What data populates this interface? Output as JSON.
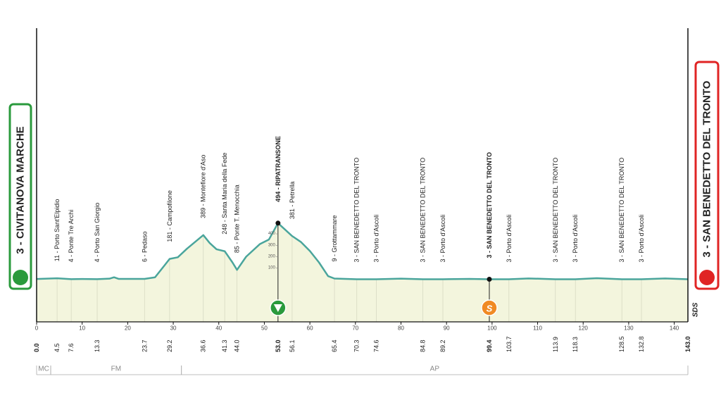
{
  "chart_data": {
    "type": "area",
    "start": "3 - CIVITANOVA MARCHE",
    "finish": "3 - SAN BENEDETTO DEL TRONTO",
    "start_color": "#2a9a3c",
    "finish_color": "#e02424",
    "color": "#4aa59c",
    "fill": "#f3f5dd",
    "x": [
      0,
      4.5,
      7.6,
      10,
      13.3,
      16,
      17,
      18,
      23.7,
      26,
      28,
      29.2,
      31,
      33,
      36.6,
      38,
      39.5,
      41.3,
      43,
      44.0,
      46,
      49,
      51,
      53.0,
      56.1,
      58,
      60,
      62,
      64,
      65.4,
      70.3,
      74.6,
      80,
      84.8,
      89.2,
      95,
      99.4,
      103.7,
      108,
      113.9,
      118.3,
      123,
      128.5,
      132.8,
      138,
      143
    ],
    "values": [
      5,
      11,
      4,
      5,
      4,
      8,
      20,
      6,
      6,
      20,
      120,
      181,
      195,
      270,
      389,
      320,
      265,
      248,
      150,
      85,
      200,
      310,
      350,
      494,
      381,
      330,
      250,
      150,
      30,
      9,
      3,
      3,
      8,
      3,
      3,
      6,
      3,
      3,
      10,
      3,
      3,
      12,
      3,
      3,
      10,
      3
    ],
    "xlim": [
      0,
      143
    ],
    "xticks": [
      0,
      10,
      20,
      30,
      40,
      50,
      60,
      70,
      80,
      90,
      100,
      110,
      120,
      130,
      140
    ],
    "ylim": [
      -370,
      2200
    ],
    "yticks": [
      100,
      200,
      300,
      400
    ],
    "waypoints": [
      {
        "km": {
          "value": 0,
          "label": "0.0"
        },
        "bold": true
      },
      {
        "km": 4.5,
        "altitude": 11,
        "label": "11 - Porto Sant'Elpidio"
      },
      {
        "km": 7.6,
        "altitude": 4,
        "label": "4 - Ponte Tre Archi"
      },
      {
        "km": 13.3,
        "altitude": 4,
        "label": "4 - Porto San Giorgio"
      },
      {
        "km": 23.7,
        "altitude": 6,
        "label": "6 - Pedaso"
      },
      {
        "km": 29.2,
        "altitude": 181,
        "label": "181 - Campofilone"
      },
      {
        "km": 36.6,
        "altitude": 389,
        "label": "389 - Montefiore d'Aso"
      },
      {
        "km": 41.3,
        "altitude": 248,
        "label": "248 - Santa Maria della Fede"
      },
      {
        "km": {
          "value": 44,
          "label": "44.0"
        },
        "altitude": 85,
        "label": "85 - Ponte T. Menocchia"
      },
      {
        "km": {
          "value": 53,
          "label": "53.0"
        },
        "altitude": 494,
        "label": "494 - RIPATRANSONE",
        "bold": true,
        "icon": "descent"
      },
      {
        "km": 56.1,
        "altitude": 381,
        "label": "381 - Petrella"
      },
      {
        "km": 65.4,
        "altitude": 9,
        "label": "9 - Grottammare"
      },
      {
        "km": 70.3,
        "altitude": 3,
        "label": "3 - SAN BENEDETTO DEL TRONTO"
      },
      {
        "km": 74.6,
        "altitude": 3,
        "label": "3 - Porto d'Ascoli"
      },
      {
        "km": 84.8,
        "altitude": 3,
        "label": "3 - SAN BENEDETTO DEL TRONTO"
      },
      {
        "km": 89.2,
        "altitude": 3,
        "label": "3 - Porto d'Ascoli"
      },
      {
        "km": 99.4,
        "altitude": 3,
        "label": "3 - SAN BENEDETTO DEL TRONTO",
        "bold": true,
        "icon": "sprint"
      },
      {
        "km": 103.7,
        "altitude": 3,
        "label": "3 - Porto d'Ascoli"
      },
      {
        "km": 113.9,
        "altitude": 3,
        "label": "3 - SAN BENEDETTO DEL TRONTO"
      },
      {
        "km": 118.3,
        "altitude": 3,
        "label": "3 - Porto d'Ascoli"
      },
      {
        "km": 128.5,
        "altitude": 3,
        "label": "3 - SAN BENEDETTO DEL TRONTO"
      },
      {
        "km": 132.8,
        "altitude": 3,
        "label": "3 - Porto d'Ascoli"
      },
      {
        "km": {
          "value": 143,
          "label": "143.0"
        },
        "bold": true
      }
    ],
    "sprint_icon_text": "S",
    "logo": "SDS",
    "regions": [
      {
        "label": "MC",
        "from": 0,
        "to": 3.1
      },
      {
        "label": "FM",
        "from": 3.1,
        "to": 31.8
      },
      {
        "label": "AP",
        "from": 31.8,
        "to": 143
      }
    ]
  }
}
